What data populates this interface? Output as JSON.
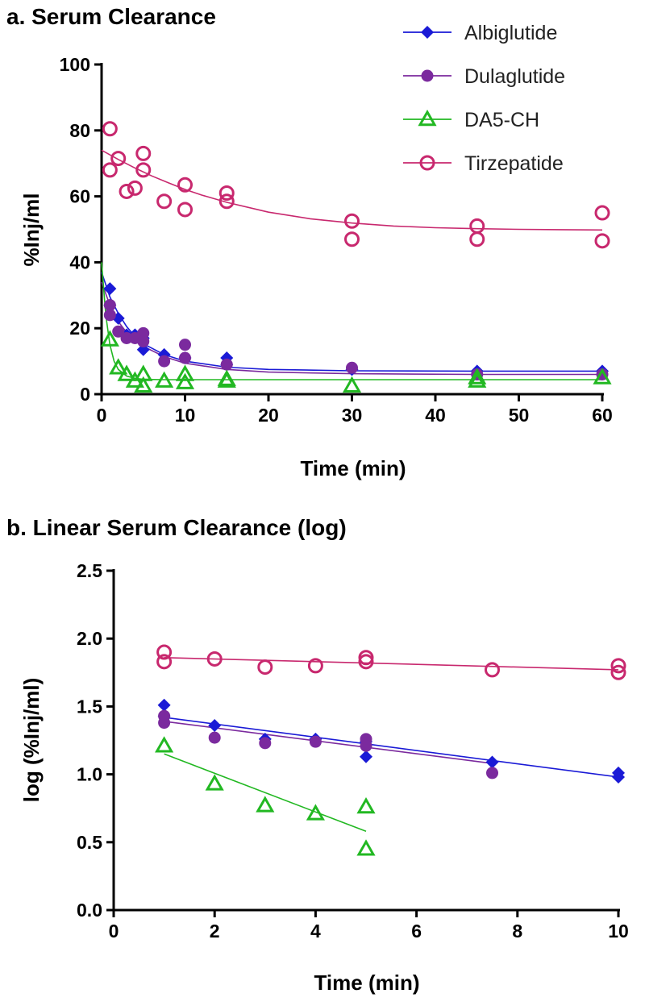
{
  "series_styles": [
    {
      "name": "Albiglutide",
      "color": "#1a1ad6",
      "marker": "diamond"
    },
    {
      "name": "Dulaglutide",
      "color": "#7b2a9e",
      "marker": "circle-filled"
    },
    {
      "name": "DA5-CH",
      "color": "#22b822",
      "marker": "triangle-open"
    },
    {
      "name": "Tirzepatide",
      "color": "#c8286e",
      "marker": "circle-open"
    }
  ],
  "chart_data": [
    {
      "panel": "a",
      "type": "scatter",
      "title": "a. Serum Clearance",
      "xlabel": "Time (min)",
      "ylabel": "%Inj/ml",
      "xlim": [
        0,
        60
      ],
      "ylim": [
        0,
        100
      ],
      "xticks": [
        0,
        10,
        20,
        30,
        40,
        50,
        60
      ],
      "yticks": [
        0,
        20,
        40,
        60,
        80,
        100
      ],
      "legend": {
        "position": "top-right",
        "entries": [
          "Albiglutide",
          "Dulaglutide",
          "DA5-CH",
          "Tirzepatide"
        ]
      },
      "series": [
        {
          "name": "Albiglutide",
          "points": [
            [
              1,
              32
            ],
            [
              1,
              27
            ],
            [
              2,
              23
            ],
            [
              3,
              18
            ],
            [
              4,
              18
            ],
            [
              5,
              17
            ],
            [
              5,
              13.5
            ],
            [
              7.5,
              12
            ],
            [
              10,
              11
            ],
            [
              15,
              11
            ],
            [
              15,
              9
            ],
            [
              30,
              7.5
            ],
            [
              45,
              7
            ],
            [
              60,
              7
            ]
          ],
          "fit": [
            [
              0,
              37
            ],
            [
              1,
              29.5
            ],
            [
              2,
              24.5
            ],
            [
              3,
              20.5
            ],
            [
              4,
              17.5
            ],
            [
              5,
              15.3
            ],
            [
              7.5,
              12
            ],
            [
              10,
              10
            ],
            [
              15,
              8.2
            ],
            [
              20,
              7.5
            ],
            [
              30,
              7.1
            ],
            [
              45,
              7
            ],
            [
              60,
              7
            ]
          ]
        },
        {
          "name": "Dulaglutide",
          "points": [
            [
              1,
              27
            ],
            [
              1,
              24
            ],
            [
              2,
              19
            ],
            [
              3,
              17
            ],
            [
              4,
              17
            ],
            [
              5,
              18.5
            ],
            [
              5,
              16
            ],
            [
              7.5,
              10
            ],
            [
              10,
              15
            ],
            [
              10,
              11
            ],
            [
              15,
              9
            ],
            [
              30,
              8
            ],
            [
              45,
              6
            ],
            [
              60,
              6
            ]
          ],
          "fit": [
            [
              0,
              34
            ],
            [
              1,
              27
            ],
            [
              2,
              22
            ],
            [
              3,
              18.7
            ],
            [
              4,
              16.3
            ],
            [
              5,
              14.5
            ],
            [
              7.5,
              11.4
            ],
            [
              10,
              9.4
            ],
            [
              15,
              7.5
            ],
            [
              20,
              6.7
            ],
            [
              30,
              6.2
            ],
            [
              45,
              6
            ],
            [
              60,
              6
            ]
          ]
        },
        {
          "name": "DA5-CH",
          "points": [
            [
              1,
              16.5
            ],
            [
              2,
              8
            ],
            [
              3,
              6
            ],
            [
              4,
              4
            ],
            [
              5,
              6
            ],
            [
              5,
              2.5
            ],
            [
              7.5,
              4
            ],
            [
              10,
              6
            ],
            [
              10,
              3.5
            ],
            [
              15,
              4.5
            ],
            [
              15,
              4
            ],
            [
              30,
              2.5
            ],
            [
              45,
              5
            ],
            [
              45,
              4
            ],
            [
              60,
              5
            ]
          ],
          "fit": [
            [
              0,
              40
            ],
            [
              0.5,
              24
            ],
            [
              1,
              15
            ],
            [
              1.5,
              10
            ],
            [
              2,
              7.5
            ],
            [
              3,
              5.5
            ],
            [
              4,
              4.8
            ],
            [
              5,
              4.5
            ],
            [
              7.5,
              4.4
            ],
            [
              10,
              4.4
            ],
            [
              60,
              4.4
            ]
          ]
        },
        {
          "name": "Tirzepatide",
          "points": [
            [
              1,
              80.5
            ],
            [
              1,
              68
            ],
            [
              2,
              71.5
            ],
            [
              3,
              61.5
            ],
            [
              4,
              62.5
            ],
            [
              5,
              73
            ],
            [
              5,
              68
            ],
            [
              7.5,
              58.5
            ],
            [
              10,
              63.5
            ],
            [
              10,
              56
            ],
            [
              15,
              61
            ],
            [
              15,
              58.5
            ],
            [
              30,
              52.5
            ],
            [
              30,
              47
            ],
            [
              45,
              51
            ],
            [
              45,
              47
            ],
            [
              60,
              55
            ],
            [
              60,
              46.5
            ]
          ],
          "fit": [
            [
              0,
              74
            ],
            [
              2,
              71.2
            ],
            [
              4,
              68.6
            ],
            [
              6,
              66.2
            ],
            [
              8,
              64.1
            ],
            [
              10,
              62.1
            ],
            [
              12,
              60.4
            ],
            [
              15,
              58.2
            ],
            [
              20,
              55.2
            ],
            [
              25,
              53.2
            ],
            [
              30,
              51.9
            ],
            [
              35,
              51
            ],
            [
              40,
              50.5
            ],
            [
              45,
              50.2
            ],
            [
              50,
              50
            ],
            [
              55,
              49.9
            ],
            [
              60,
              49.8
            ]
          ]
        }
      ]
    },
    {
      "panel": "b",
      "type": "scatter",
      "title": "b. Linear Serum Clearance (log)",
      "xlabel": "Time (min)",
      "ylabel": "log (%Inj/ml)",
      "xlim": [
        0,
        10
      ],
      "ylim": [
        0,
        2.5
      ],
      "xticks": [
        0,
        2,
        4,
        6,
        8,
        10
      ],
      "ytick_labels": [
        "0.0",
        "0.5",
        "1.0",
        "1.5",
        "2.0",
        "2.5"
      ],
      "series": [
        {
          "name": "Albiglutide",
          "points": [
            [
              1,
              1.51
            ],
            [
              1,
              1.43
            ],
            [
              2,
              1.36
            ],
            [
              3,
              1.26
            ],
            [
              4,
              1.26
            ],
            [
              5,
              1.24
            ],
            [
              5,
              1.13
            ],
            [
              7.5,
              1.09
            ],
            [
              10,
              1.01
            ],
            [
              10,
              0.98
            ]
          ],
          "fit": [
            [
              1,
              1.42
            ],
            [
              10,
              0.98
            ]
          ]
        },
        {
          "name": "Dulaglutide",
          "points": [
            [
              1,
              1.43
            ],
            [
              1,
              1.38
            ],
            [
              2,
              1.27
            ],
            [
              3,
              1.23
            ],
            [
              4,
              1.24
            ],
            [
              5,
              1.26
            ],
            [
              5,
              1.21
            ],
            [
              7.5,
              1.01
            ]
          ],
          "fit": [
            [
              1,
              1.39
            ],
            [
              7.5,
              1.08
            ]
          ]
        },
        {
          "name": "DA5-CH",
          "points": [
            [
              1,
              1.21
            ],
            [
              2,
              0.93
            ],
            [
              3,
              0.77
            ],
            [
              4,
              0.71
            ],
            [
              5,
              0.76
            ],
            [
              5,
              0.45
            ]
          ],
          "fit": [
            [
              1,
              1.15
            ],
            [
              5,
              0.58
            ]
          ]
        },
        {
          "name": "Tirzepatide",
          "points": [
            [
              1,
              1.9
            ],
            [
              1,
              1.83
            ],
            [
              2,
              1.85
            ],
            [
              3,
              1.79
            ],
            [
              4,
              1.8
            ],
            [
              5,
              1.86
            ],
            [
              5,
              1.83
            ],
            [
              7.5,
              1.77
            ],
            [
              10,
              1.8
            ],
            [
              10,
              1.75
            ]
          ],
          "fit": [
            [
              1,
              1.86
            ],
            [
              10,
              1.77
            ]
          ]
        }
      ]
    }
  ]
}
